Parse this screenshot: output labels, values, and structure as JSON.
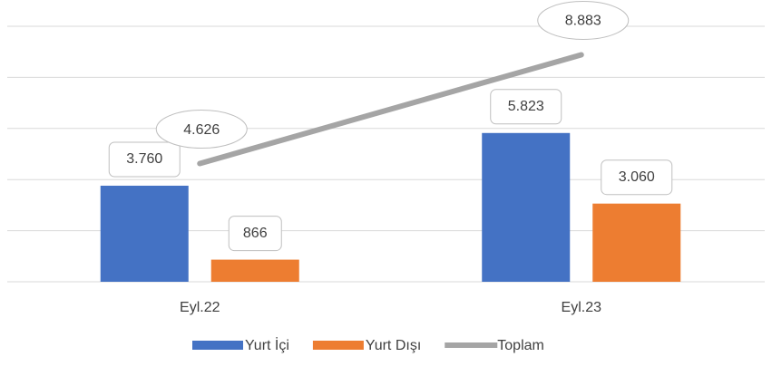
{
  "chart_data": {
    "type": "bar",
    "categories": [
      "Eyl.22",
      "Eyl.23"
    ],
    "series": [
      {
        "name": "Yurt İçi",
        "color": "#4472c4",
        "values": [
          3760,
          5823
        ],
        "value_labels": [
          "3.760",
          "5.823"
        ]
      },
      {
        "name": "Yurt Dışı",
        "color": "#ed7d31",
        "values": [
          866,
          3060
        ],
        "value_labels": [
          "866",
          "3.060"
        ]
      },
      {
        "name": "Toplam",
        "type": "line",
        "color": "#a5a5a5",
        "values": [
          4626,
          8883
        ],
        "value_labels": [
          "4.626",
          "8.883"
        ]
      }
    ],
    "ylim": [
      0,
      10000
    ],
    "yticks": [
      0,
      2000,
      4000,
      6000,
      8000,
      10000
    ],
    "grid": true,
    "legend": "bottom"
  }
}
